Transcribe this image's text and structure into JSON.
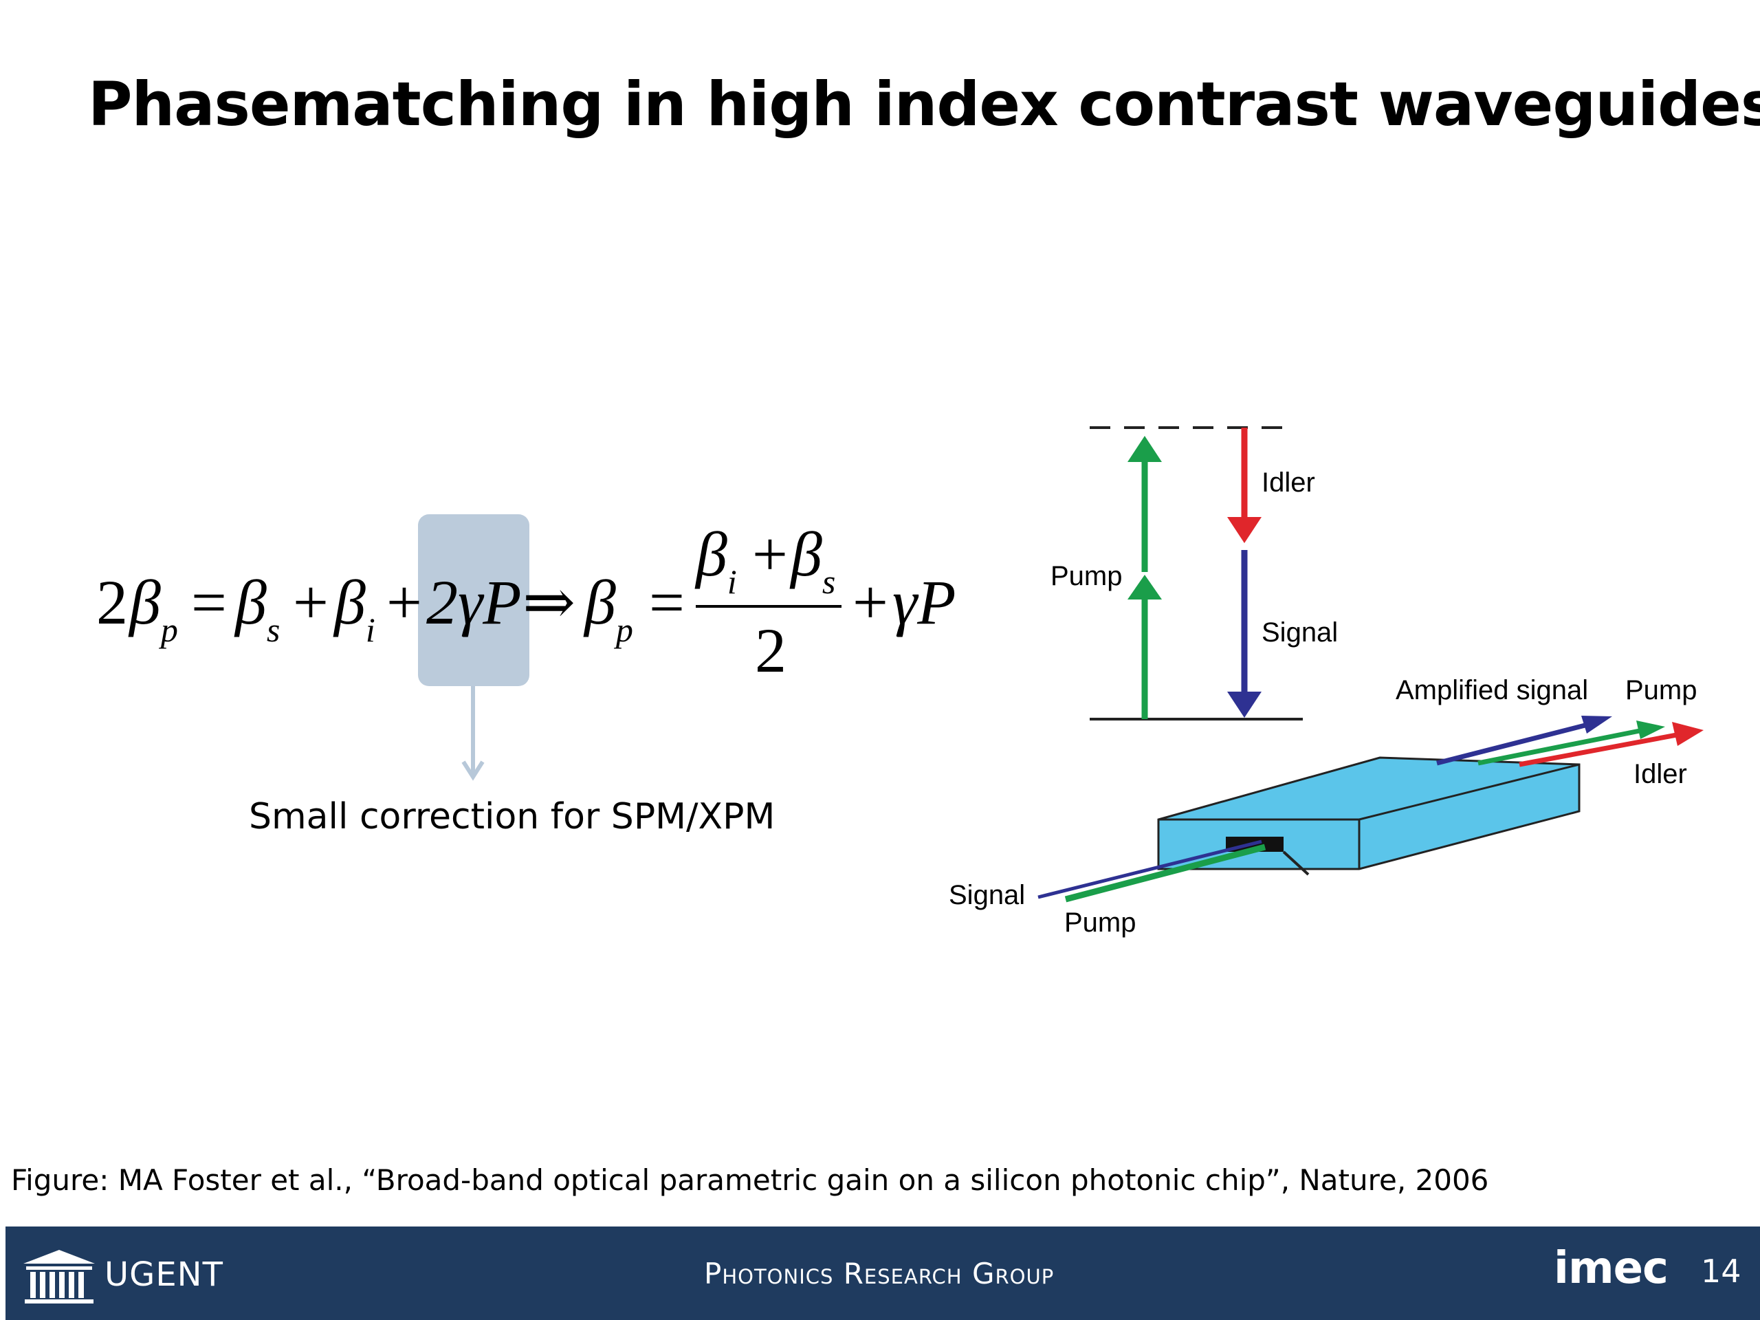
{
  "slide": {
    "title": "Phasematching in high index contrast waveguides",
    "correction_note": "Small correction for SPM/XPM",
    "caption": "Figure: MA Foster  et al., “Broad-band optical parametric gain on a silicon photonic chip”, Nature,  2006"
  },
  "equation": {
    "lhs_coeff": "2",
    "beta": "β",
    "sub_p": "p",
    "eq": "=",
    "sub_s": "s",
    "plus": "+",
    "sub_i": "i",
    "two_gamma_p": "2γP",
    "implies": "⇒",
    "two": "2",
    "gamma_p": "γP"
  },
  "figure": {
    "labels": {
      "idler_top": "Idler",
      "pump_top": "Pump",
      "signal_top": "Signal",
      "amplified_signal": "Amplified signal",
      "pump_out": "Pump",
      "idler_out": "Idler",
      "signal_in": "Signal",
      "pump_in": "Pump"
    },
    "colors": {
      "pump": "#1a9e4a",
      "idler": "#e0262b",
      "signal": "#2e3192",
      "waveguide": "#5bc5ea"
    }
  },
  "footer": {
    "university": "UGENT",
    "group": "Photonics Research Group",
    "partner": "imec",
    "page_number": "14"
  }
}
